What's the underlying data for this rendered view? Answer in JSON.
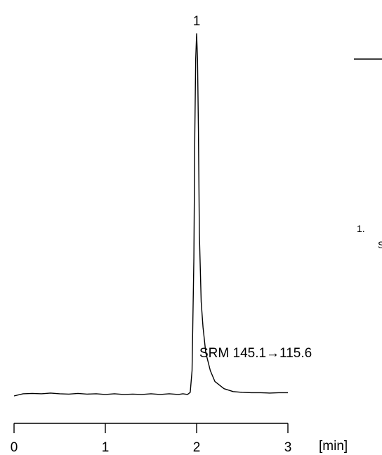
{
  "chart_data": {
    "type": "line",
    "xlabel": "[min]",
    "ylabel": "",
    "xlim": [
      0,
      3
    ],
    "x_ticks": [
      "0",
      "1",
      "2",
      "3"
    ],
    "grid": false,
    "annotations": {
      "transition": "SRM 145.1→115.6",
      "peaks": [
        {
          "label": "1",
          "x": 2.0,
          "y": 1.0
        }
      ],
      "peak_list_marker": "1.",
      "peak_list_text_fragment": "S"
    },
    "series": [
      {
        "color": "#000000",
        "x": [
          0,
          0.1,
          0.2,
          0.3,
          0.4,
          0.5,
          0.6,
          0.7,
          0.8,
          0.9,
          1.0,
          1.1,
          1.2,
          1.3,
          1.4,
          1.5,
          1.6,
          1.7,
          1.8,
          1.85,
          1.9,
          1.93,
          1.95,
          1.97,
          1.98,
          1.99,
          2.0,
          2.01,
          2.02,
          2.03,
          2.05,
          2.07,
          2.1,
          2.15,
          2.2,
          2.3,
          2.4,
          2.5,
          2.6,
          2.7,
          2.8,
          2.9,
          3.0
        ],
        "y": [
          0.0,
          0.006,
          0.007,
          0.006,
          0.008,
          0.006,
          0.005,
          0.007,
          0.005,
          0.006,
          0.004,
          0.006,
          0.004,
          0.005,
          0.004,
          0.006,
          0.004,
          0.006,
          0.004,
          0.006,
          0.004,
          0.01,
          0.07,
          0.38,
          0.72,
          0.93,
          1.0,
          0.93,
          0.73,
          0.45,
          0.26,
          0.19,
          0.12,
          0.07,
          0.04,
          0.02,
          0.012,
          0.01,
          0.009,
          0.009,
          0.008,
          0.009,
          0.009
        ]
      }
    ]
  }
}
